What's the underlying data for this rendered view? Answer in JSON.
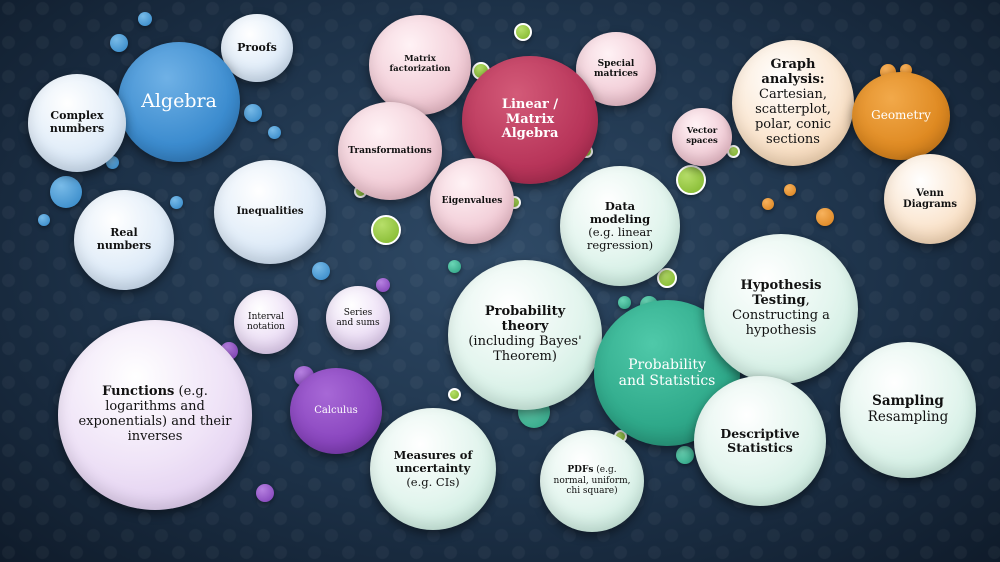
{
  "bubbles": {
    "proofs": "Proofs",
    "algebra": "Algebra",
    "complex_numbers": "Complex numbers",
    "real_numbers": "Real numbers",
    "inequalities": "Inequalities",
    "interval_notation": "Interval notation",
    "series_sums": "Series and sums",
    "functions_bold": "Functions",
    "functions_rest": " (e.g. logarithms and exponentials) and their inverses",
    "calculus": "Calculus",
    "matrix_factorization": "Matrix factorization",
    "special_matrices": "Special matrices",
    "linear_matrix_algebra": "Linear / Matrix Algebra",
    "transformations": "Transformations",
    "eigenvalues": "Eigenvalues",
    "vector_spaces": "Vector spaces",
    "graph_analysis_bold": "Graph analysis:",
    "graph_analysis_rest": "Cartesian, scatterplot, polar, conic sections",
    "geometry": "Geometry",
    "venn_diagrams": "Venn Diagrams",
    "data_modeling_bold": "Data modeling",
    "data_modeling_rest": "(e.g. linear regression)",
    "probability_theory_bold": "Probability theory",
    "probability_theory_rest": "(including Bayes' Theorem)",
    "probability_statistics": "Probability and Statistics",
    "hypothesis_bold": "Hypothesis Testing",
    "hypothesis_rest": ", Constructing a hypothesis",
    "sampling_bold": "Sampling",
    "sampling_rest": "Resampling",
    "descriptive_statistics": "Descriptive Statistics",
    "measures_uncertainty_bold": "Measures of uncertainty",
    "measures_uncertainty_rest": "(e.g. CIs)",
    "pdfs_bold": "PDFs",
    "pdfs_rest": " (e.g. normal, uniform, chi square)"
  },
  "colors": {
    "background": "#1d3249",
    "algebra_family": "#3c8ccf",
    "linear_algebra_family": "#b8355a",
    "statistics_family": "#2fa98a",
    "geometry_family": "#df8a22",
    "calculus_family": "#8a46bf",
    "connector_green": "#7fb52a"
  }
}
